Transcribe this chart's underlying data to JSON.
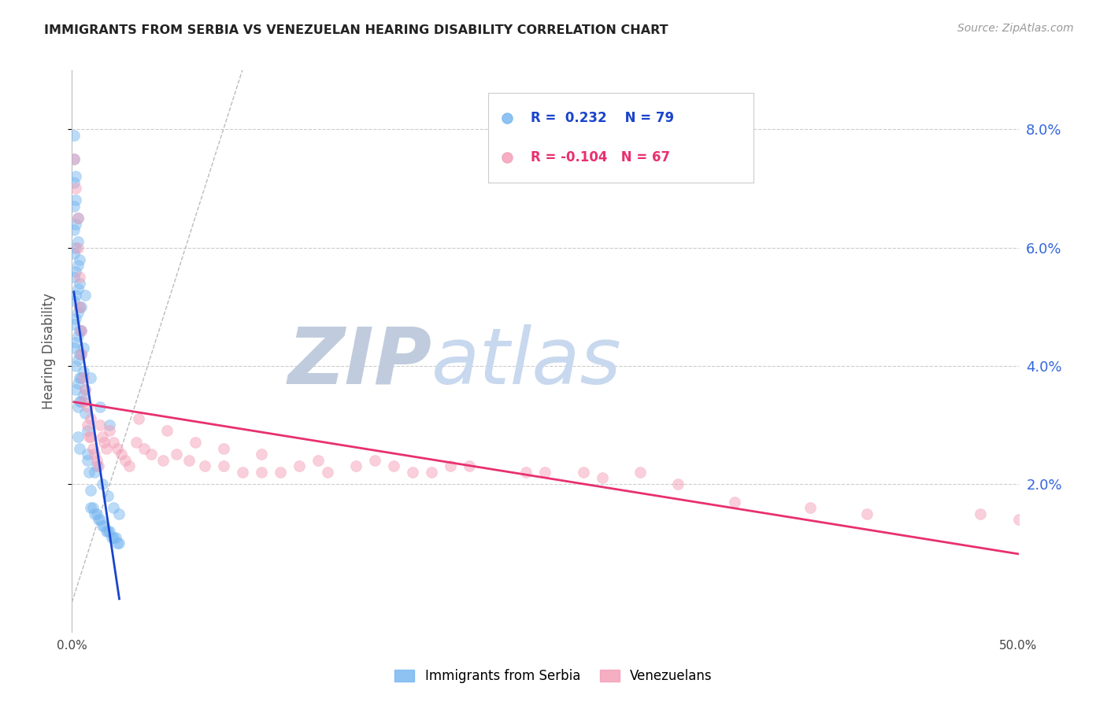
{
  "title": "IMMIGRANTS FROM SERBIA VS VENEZUELAN HEARING DISABILITY CORRELATION CHART",
  "source": "Source: ZipAtlas.com",
  "ylabel": "Hearing Disability",
  "right_yticks": [
    "8.0%",
    "6.0%",
    "4.0%",
    "2.0%"
  ],
  "right_ytick_vals": [
    0.08,
    0.06,
    0.04,
    0.02
  ],
  "xlim": [
    0.0,
    0.5
  ],
  "ylim": [
    -0.005,
    0.09
  ],
  "serbia_R": 0.232,
  "serbia_N": 79,
  "venezuela_R": -0.104,
  "venezuela_N": 67,
  "serbia_color": "#7ab8f0",
  "venezuela_color": "#f4a0b8",
  "serbia_line_color": "#1a44cc",
  "venezuela_line_color": "#e83070",
  "diagonal_line_color": "#bbbbbb",
  "grid_color": "#cccccc",
  "title_color": "#222222",
  "right_axis_color": "#3366dd",
  "legend_serbia_label": "Immigrants from Serbia",
  "legend_venezuela_label": "Venezuelans",
  "serbia_x": [
    0.001,
    0.001,
    0.001,
    0.001,
    0.001,
    0.001,
    0.001,
    0.001,
    0.001,
    0.001,
    0.002,
    0.002,
    0.002,
    0.002,
    0.002,
    0.002,
    0.002,
    0.002,
    0.002,
    0.002,
    0.003,
    0.003,
    0.003,
    0.003,
    0.003,
    0.003,
    0.003,
    0.003,
    0.003,
    0.004,
    0.004,
    0.004,
    0.004,
    0.004,
    0.004,
    0.004,
    0.005,
    0.005,
    0.005,
    0.005,
    0.005,
    0.006,
    0.006,
    0.006,
    0.007,
    0.007,
    0.008,
    0.008,
    0.009,
    0.01,
    0.01,
    0.011,
    0.012,
    0.013,
    0.014,
    0.015,
    0.016,
    0.017,
    0.018,
    0.019,
    0.02,
    0.021,
    0.022,
    0.023,
    0.024,
    0.025,
    0.015,
    0.007,
    0.01,
    0.02,
    0.003,
    0.004,
    0.008,
    0.012,
    0.016,
    0.019,
    0.022,
    0.025,
    0.013
  ],
  "serbia_y": [
    0.079,
    0.075,
    0.071,
    0.067,
    0.063,
    0.059,
    0.055,
    0.051,
    0.047,
    0.043,
    0.072,
    0.068,
    0.064,
    0.06,
    0.056,
    0.052,
    0.048,
    0.044,
    0.04,
    0.036,
    0.065,
    0.061,
    0.057,
    0.053,
    0.049,
    0.045,
    0.041,
    0.037,
    0.033,
    0.058,
    0.054,
    0.05,
    0.046,
    0.042,
    0.038,
    0.034,
    0.05,
    0.046,
    0.042,
    0.038,
    0.034,
    0.043,
    0.039,
    0.035,
    0.036,
    0.032,
    0.029,
    0.025,
    0.022,
    0.019,
    0.016,
    0.016,
    0.015,
    0.015,
    0.014,
    0.014,
    0.013,
    0.013,
    0.012,
    0.012,
    0.012,
    0.011,
    0.011,
    0.011,
    0.01,
    0.01,
    0.033,
    0.052,
    0.038,
    0.03,
    0.028,
    0.026,
    0.024,
    0.022,
    0.02,
    0.018,
    0.016,
    0.015,
    0.023
  ],
  "venezuela_x": [
    0.001,
    0.002,
    0.003,
    0.003,
    0.004,
    0.004,
    0.005,
    0.005,
    0.006,
    0.006,
    0.007,
    0.008,
    0.008,
    0.009,
    0.01,
    0.01,
    0.011,
    0.012,
    0.013,
    0.014,
    0.015,
    0.016,
    0.017,
    0.018,
    0.02,
    0.022,
    0.024,
    0.026,
    0.028,
    0.03,
    0.034,
    0.038,
    0.042,
    0.048,
    0.055,
    0.062,
    0.07,
    0.08,
    0.09,
    0.1,
    0.11,
    0.12,
    0.135,
    0.15,
    0.17,
    0.19,
    0.21,
    0.24,
    0.27,
    0.3,
    0.035,
    0.05,
    0.065,
    0.08,
    0.1,
    0.13,
    0.16,
    0.2,
    0.25,
    0.39,
    0.42,
    0.35,
    0.48,
    0.5,
    0.28,
    0.32,
    0.18
  ],
  "venezuela_y": [
    0.075,
    0.07,
    0.065,
    0.06,
    0.055,
    0.05,
    0.046,
    0.042,
    0.038,
    0.034,
    0.036,
    0.033,
    0.03,
    0.028,
    0.031,
    0.028,
    0.026,
    0.025,
    0.024,
    0.023,
    0.03,
    0.028,
    0.027,
    0.026,
    0.029,
    0.027,
    0.026,
    0.025,
    0.024,
    0.023,
    0.027,
    0.026,
    0.025,
    0.024,
    0.025,
    0.024,
    0.023,
    0.023,
    0.022,
    0.022,
    0.022,
    0.023,
    0.022,
    0.023,
    0.023,
    0.022,
    0.023,
    0.022,
    0.022,
    0.022,
    0.031,
    0.029,
    0.027,
    0.026,
    0.025,
    0.024,
    0.024,
    0.023,
    0.022,
    0.016,
    0.015,
    0.017,
    0.015,
    0.014,
    0.021,
    0.02,
    0.022
  ],
  "watermark_zip_color": "#c0ccdd",
  "watermark_atlas_color": "#c8d8ee",
  "marker_size": 100,
  "marker_alpha": 0.5,
  "line_width": 2.0
}
